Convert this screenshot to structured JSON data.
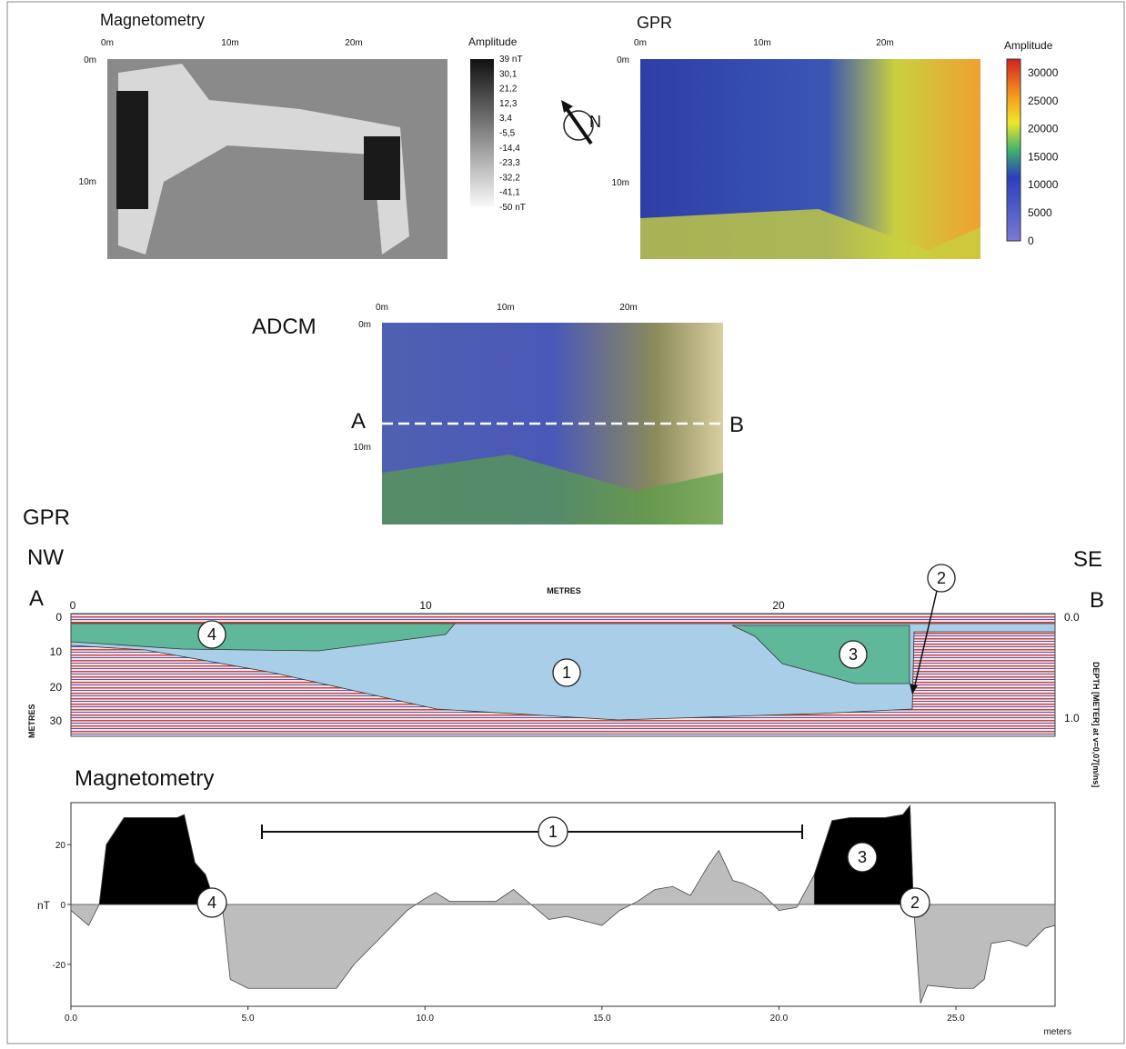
{
  "magnetometry_map": {
    "title": "Magnetometry",
    "axis_top": [
      "0m",
      "10m",
      "20m"
    ],
    "axis_left": [
      "0m",
      "10m"
    ],
    "legend_title": "Amplitude",
    "legend_labels": [
      "39 nT",
      "30,1",
      "21,2",
      "12,3",
      "3,4",
      "-5,5",
      "-14,4",
      "-23,3",
      "-32,2",
      "-41,1",
      "-50 nT"
    ]
  },
  "gpr_map": {
    "title": "GPR",
    "axis_top": [
      "0m",
      "10m",
      "20m"
    ],
    "axis_left": [
      "0m",
      "10m"
    ],
    "legend_title": "Amplitude",
    "legend_labels": [
      "30000",
      "25000",
      "20000",
      "15000",
      "10000",
      "5000",
      "0"
    ]
  },
  "north": "N",
  "adcm_map": {
    "title": "ADCM",
    "axis_top": [
      "0m",
      "10m",
      "20m"
    ],
    "axis_left": [
      "0m",
      "10m"
    ],
    "point_a": "A",
    "point_b": "B"
  },
  "gpr_section": {
    "title": "GPR",
    "left_direction": "NW",
    "right_direction": "SE",
    "left_point": "A",
    "right_point": "B",
    "x_axis_title": "METRES",
    "x_ticks": [
      "0",
      "10",
      "20"
    ],
    "y_axis_title": "METRES",
    "y_ticks": [
      "0",
      "10",
      "20",
      "30"
    ],
    "depth_title": "DEPTH [METER] at v=0,07[m/ns]",
    "depth_ticks": [
      "0.0",
      "1.0"
    ],
    "zones": [
      "1",
      "2",
      "3",
      "4"
    ]
  },
  "chart_data": {
    "type": "area",
    "title": "Magnetometry",
    "y_label": "nT",
    "x_label": "meters",
    "x": [
      0,
      0.5,
      0.8,
      1,
      1.5,
      2,
      2.5,
      3,
      3.2,
      3.5,
      3.8,
      4,
      4.3,
      4.5,
      5,
      6,
      7,
      7.5,
      8,
      8.5,
      9,
      9.5,
      10,
      10.3,
      10.7,
      11,
      12,
      12.5,
      13,
      13.5,
      14,
      15,
      15.5,
      16,
      16.5,
      17,
      17.5,
      18,
      18.3,
      18.7,
      19,
      19.5,
      20,
      20.5,
      21,
      21.5,
      22,
      23,
      23.5,
      23.7,
      23.8,
      24,
      24.2,
      25,
      25.5,
      25.8,
      26,
      26.5,
      27,
      27.5,
      27.8
    ],
    "series": [
      {
        "color": "#bdbdbd",
        "values": [
          -2,
          -7,
          0,
          20,
          29,
          29,
          29,
          29,
          30,
          14,
          10,
          3,
          -3,
          -25,
          -28,
          -28,
          -28,
          -28,
          -20,
          -14,
          -8,
          -2,
          2,
          4,
          1,
          1,
          1,
          5,
          0,
          -5,
          -4,
          -7,
          -2,
          1,
          5,
          6,
          3,
          13,
          18,
          8,
          7,
          4,
          -2,
          -1,
          10,
          28,
          29,
          29,
          30,
          33,
          0,
          -33,
          -27,
          -28,
          -28,
          -25,
          -13,
          -12,
          -14,
          -8,
          -7
        ]
      },
      {
        "color": "#000000",
        "values": [
          null,
          null,
          0,
          20,
          29,
          29,
          29,
          29,
          30,
          14,
          10,
          3,
          null,
          null,
          null,
          null,
          null,
          null,
          null,
          null,
          null,
          null,
          null,
          null,
          null,
          null,
          null,
          null,
          null,
          null,
          null,
          null,
          null,
          null,
          null,
          null,
          null,
          null,
          null,
          null,
          null,
          null,
          null,
          null,
          10,
          28,
          29,
          29,
          30,
          33,
          0,
          null,
          null,
          null,
          null,
          null,
          null,
          null,
          null,
          null,
          null
        ]
      }
    ],
    "xlim": [
      0,
      27.8
    ],
    "ylim": [
      -34,
      34
    ],
    "xticks": [
      {
        "value": 0,
        "label": "0.0"
      },
      {
        "value": 5,
        "label": "5.0"
      },
      {
        "value": 10,
        "label": "10.0"
      },
      {
        "value": 15,
        "label": "15.0"
      },
      {
        "value": 20,
        "label": "20.0"
      },
      {
        "value": 25,
        "label": "25.0"
      }
    ],
    "yticks": [
      20,
      0,
      -20
    ],
    "annotations": [
      "1",
      "2",
      "3",
      "4"
    ]
  }
}
